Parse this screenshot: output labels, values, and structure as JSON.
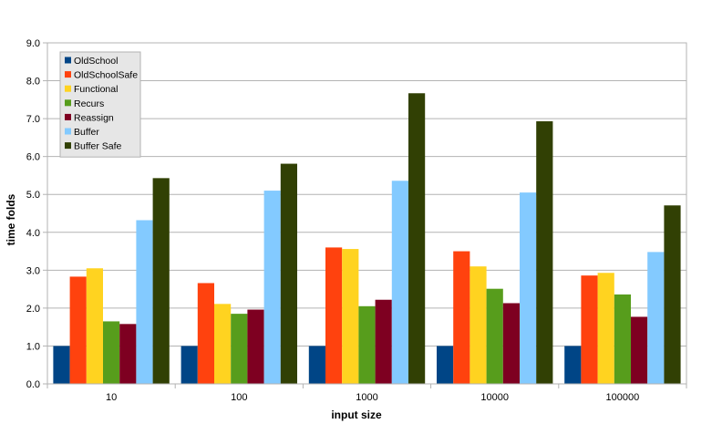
{
  "chart_data": {
    "type": "bar",
    "title": "",
    "xlabel": "input size",
    "ylabel": "time folds",
    "categories": [
      "10",
      "100",
      "1000",
      "10000",
      "100000"
    ],
    "ylim": [
      0,
      9
    ],
    "ytick_step": 1,
    "ytick_labels": [
      "0.0",
      "1.0",
      "2.0",
      "3.0",
      "4.0",
      "5.0",
      "6.0",
      "7.0",
      "8.0",
      "9.0"
    ],
    "grid": true,
    "legend_position": "top-left",
    "series": [
      {
        "name": "OldSchool",
        "color": "#004586",
        "values": [
          1.0,
          1.0,
          1.0,
          1.0,
          1.0
        ]
      },
      {
        "name": "OldSchoolSafe",
        "color": "#ff420e",
        "values": [
          2.83,
          2.66,
          3.6,
          3.5,
          2.86
        ]
      },
      {
        "name": "Functional",
        "color": "#ffd320",
        "values": [
          3.05,
          2.11,
          3.56,
          3.1,
          2.93
        ]
      },
      {
        "name": "Recurs",
        "color": "#579d1c",
        "values": [
          1.65,
          1.85,
          2.05,
          2.51,
          2.36
        ]
      },
      {
        "name": "Reassign",
        "color": "#7e0021",
        "values": [
          1.58,
          1.96,
          2.22,
          2.13,
          1.77
        ]
      },
      {
        "name": "Buffer",
        "color": "#83caff",
        "values": [
          4.32,
          5.1,
          5.36,
          5.05,
          3.48
        ]
      },
      {
        "name": "Buffer Safe",
        "color": "#314004",
        "values": [
          5.43,
          5.81,
          7.67,
          6.93,
          4.71
        ]
      }
    ]
  }
}
